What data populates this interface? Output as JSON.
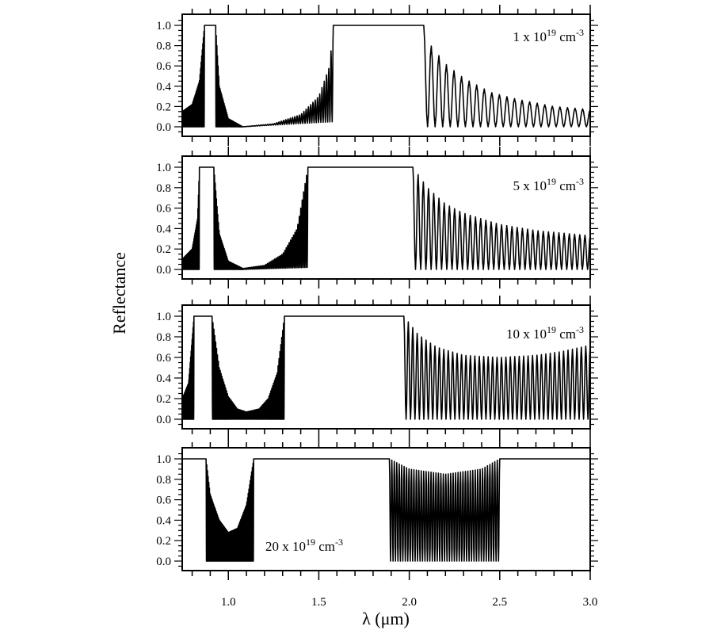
{
  "chart_data": {
    "type": "line",
    "title": "",
    "xlabel": "λ (μm)",
    "ylabel": "Reflectance",
    "xlim": [
      0.745,
      3.0
    ],
    "ylim": [
      0.0,
      1.0
    ],
    "x_ticks": [
      "1.0",
      "1.5",
      "2.0",
      "2.5",
      "3.0"
    ],
    "x_tick_values": [
      1.0,
      1.5,
      2.0,
      2.5,
      3.0
    ],
    "y_ticks": [
      "0.0",
      "0.2",
      "0.4",
      "0.6",
      "0.8",
      "1.0"
    ],
    "y_tick_values": [
      0.0,
      0.2,
      0.4,
      0.6,
      0.8,
      1.0
    ],
    "grid": false,
    "panels": [
      {
        "label": "1 x 10",
        "label_exp": "19",
        "label_unit": " cm",
        "label_unit_exp": "-3",
        "segments": [
          {
            "type": "osc",
            "range": [
              0.745,
              0.868
            ],
            "cycles": 40,
            "upper": [
              [
                0.745,
                0.15
              ],
              [
                0.8,
                0.22
              ],
              [
                0.84,
                0.45
              ],
              [
                0.868,
                1.0
              ]
            ],
            "lower": [
              [
                0.745,
                0.0
              ],
              [
                0.868,
                0.0
              ]
            ]
          },
          {
            "type": "band",
            "range": [
              0.868,
              0.93
            ]
          },
          {
            "type": "osc",
            "range": [
              0.93,
              1.08
            ],
            "cycles": 45,
            "upper": [
              [
                0.93,
                1.0
              ],
              [
                0.95,
                0.4
              ],
              [
                1.0,
                0.08
              ],
              [
                1.08,
                0.0
              ]
            ],
            "lower": [
              [
                0.93,
                0.0
              ],
              [
                1.08,
                0.0
              ]
            ]
          },
          {
            "type": "osc",
            "range": [
              1.08,
              1.58
            ],
            "cycles": 40,
            "upper": [
              [
                1.08,
                0.0
              ],
              [
                1.25,
                0.03
              ],
              [
                1.4,
                0.12
              ],
              [
                1.5,
                0.3
              ],
              [
                1.56,
                0.6
              ],
              [
                1.58,
                1.0
              ]
            ],
            "lower": [
              [
                1.08,
                0.0
              ],
              [
                1.58,
                0.05
              ]
            ]
          },
          {
            "type": "band",
            "range": [
              1.58,
              2.08
            ]
          },
          {
            "type": "osc",
            "range": [
              2.08,
              3.0
            ],
            "cycles": 22,
            "upper": [
              [
                2.08,
                1.0
              ],
              [
                2.12,
                0.8
              ],
              [
                2.2,
                0.62
              ],
              [
                2.3,
                0.48
              ],
              [
                2.45,
                0.34
              ],
              [
                2.6,
                0.27
              ],
              [
                2.8,
                0.2
              ],
              [
                3.0,
                0.17
              ]
            ],
            "lower": [
              [
                2.08,
                0.0
              ],
              [
                3.0,
                0.0
              ]
            ]
          }
        ]
      },
      {
        "label": "5 x 10",
        "label_exp": "19",
        "label_unit": " cm",
        "label_unit_exp": "-3",
        "segments": [
          {
            "type": "osc",
            "range": [
              0.745,
              0.84
            ],
            "cycles": 35,
            "upper": [
              [
                0.745,
                0.1
              ],
              [
                0.8,
                0.2
              ],
              [
                0.83,
                0.5
              ],
              [
                0.84,
                1.0
              ]
            ],
            "lower": [
              [
                0.745,
                0.0
              ],
              [
                0.84,
                0.0
              ]
            ]
          },
          {
            "type": "band",
            "range": [
              0.84,
              0.92
            ]
          },
          {
            "type": "osc",
            "range": [
              0.92,
              1.08
            ],
            "cycles": 45,
            "upper": [
              [
                0.92,
                1.0
              ],
              [
                0.95,
                0.35
              ],
              [
                1.0,
                0.08
              ],
              [
                1.08,
                0.01
              ]
            ],
            "lower": [
              [
                0.92,
                0.0
              ],
              [
                1.08,
                0.0
              ]
            ]
          },
          {
            "type": "osc",
            "range": [
              1.08,
              1.44
            ],
            "cycles": 45,
            "upper": [
              [
                1.08,
                0.01
              ],
              [
                1.2,
                0.04
              ],
              [
                1.3,
                0.15
              ],
              [
                1.38,
                0.4
              ],
              [
                1.44,
                1.0
              ]
            ],
            "lower": [
              [
                1.08,
                0.0
              ],
              [
                1.44,
                0.02
              ]
            ]
          },
          {
            "type": "band",
            "range": [
              1.44,
              2.02
            ]
          },
          {
            "type": "osc",
            "range": [
              2.02,
              3.0
            ],
            "cycles": 34,
            "upper": [
              [
                2.02,
                1.0
              ],
              [
                2.1,
                0.8
              ],
              [
                2.2,
                0.64
              ],
              [
                2.3,
                0.55
              ],
              [
                2.5,
                0.44
              ],
              [
                2.7,
                0.38
              ],
              [
                3.0,
                0.33
              ]
            ],
            "lower": [
              [
                2.02,
                0.0
              ],
              [
                3.0,
                0.0
              ]
            ]
          }
        ]
      },
      {
        "label": "10 x 10",
        "label_exp": "19",
        "label_unit": " cm",
        "label_unit_exp": "-3",
        "segments": [
          {
            "type": "osc",
            "range": [
              0.745,
              0.81
            ],
            "cycles": 25,
            "upper": [
              [
                0.745,
                0.2
              ],
              [
                0.78,
                0.35
              ],
              [
                0.81,
                1.0
              ]
            ],
            "lower": [
              [
                0.745,
                0.0
              ],
              [
                0.81,
                0.0
              ]
            ]
          },
          {
            "type": "band",
            "range": [
              0.81,
              0.91
            ]
          },
          {
            "type": "osc",
            "range": [
              0.91,
              1.31
            ],
            "cycles": 80,
            "upper": [
              [
                0.91,
                1.0
              ],
              [
                0.95,
                0.5
              ],
              [
                1.0,
                0.22
              ],
              [
                1.05,
                0.1
              ],
              [
                1.1,
                0.07
              ],
              [
                1.17,
                0.1
              ],
              [
                1.22,
                0.2
              ],
              [
                1.27,
                0.45
              ],
              [
                1.31,
                1.0
              ]
            ],
            "lower": [
              [
                0.91,
                0.0
              ],
              [
                1.31,
                0.0
              ]
            ]
          },
          {
            "type": "band",
            "range": [
              1.31,
              1.97
            ]
          },
          {
            "type": "osc",
            "range": [
              1.97,
              3.0
            ],
            "cycles": 42,
            "upper": [
              [
                1.97,
                1.0
              ],
              [
                2.05,
                0.82
              ],
              [
                2.15,
                0.7
              ],
              [
                2.3,
                0.62
              ],
              [
                2.5,
                0.6
              ],
              [
                2.7,
                0.62
              ],
              [
                2.85,
                0.66
              ],
              [
                3.0,
                0.72
              ]
            ],
            "lower": [
              [
                1.97,
                0.0
              ],
              [
                3.0,
                0.0
              ]
            ]
          }
        ]
      },
      {
        "label": "20 x 10",
        "label_exp": "19",
        "label_unit": " cm",
        "label_unit_exp": "-3",
        "segments": [
          {
            "type": "band",
            "range": [
              0.745,
              0.877
            ]
          },
          {
            "type": "osc",
            "range": [
              0.877,
              1.14
            ],
            "cycles": 70,
            "upper": [
              [
                0.877,
                1.0
              ],
              [
                0.9,
                0.65
              ],
              [
                0.95,
                0.4
              ],
              [
                1.0,
                0.28
              ],
              [
                1.05,
                0.32
              ],
              [
                1.1,
                0.55
              ],
              [
                1.14,
                1.0
              ]
            ],
            "lower": [
              [
                0.877,
                0.0
              ],
              [
                1.14,
                0.0
              ]
            ]
          },
          {
            "type": "band",
            "range": [
              1.14,
              1.89
            ]
          },
          {
            "type": "osc",
            "range": [
              1.89,
              2.5
            ],
            "cycles": 45,
            "upper": [
              [
                1.89,
                1.0
              ],
              [
                2.0,
                0.9
              ],
              [
                2.2,
                0.85
              ],
              [
                2.4,
                0.9
              ],
              [
                2.5,
                1.0
              ]
            ],
            "lower": [
              [
                1.89,
                0.0
              ],
              [
                2.5,
                0.0
              ]
            ]
          },
          {
            "type": "band",
            "range": [
              2.5,
              3.0
            ]
          }
        ]
      }
    ]
  }
}
